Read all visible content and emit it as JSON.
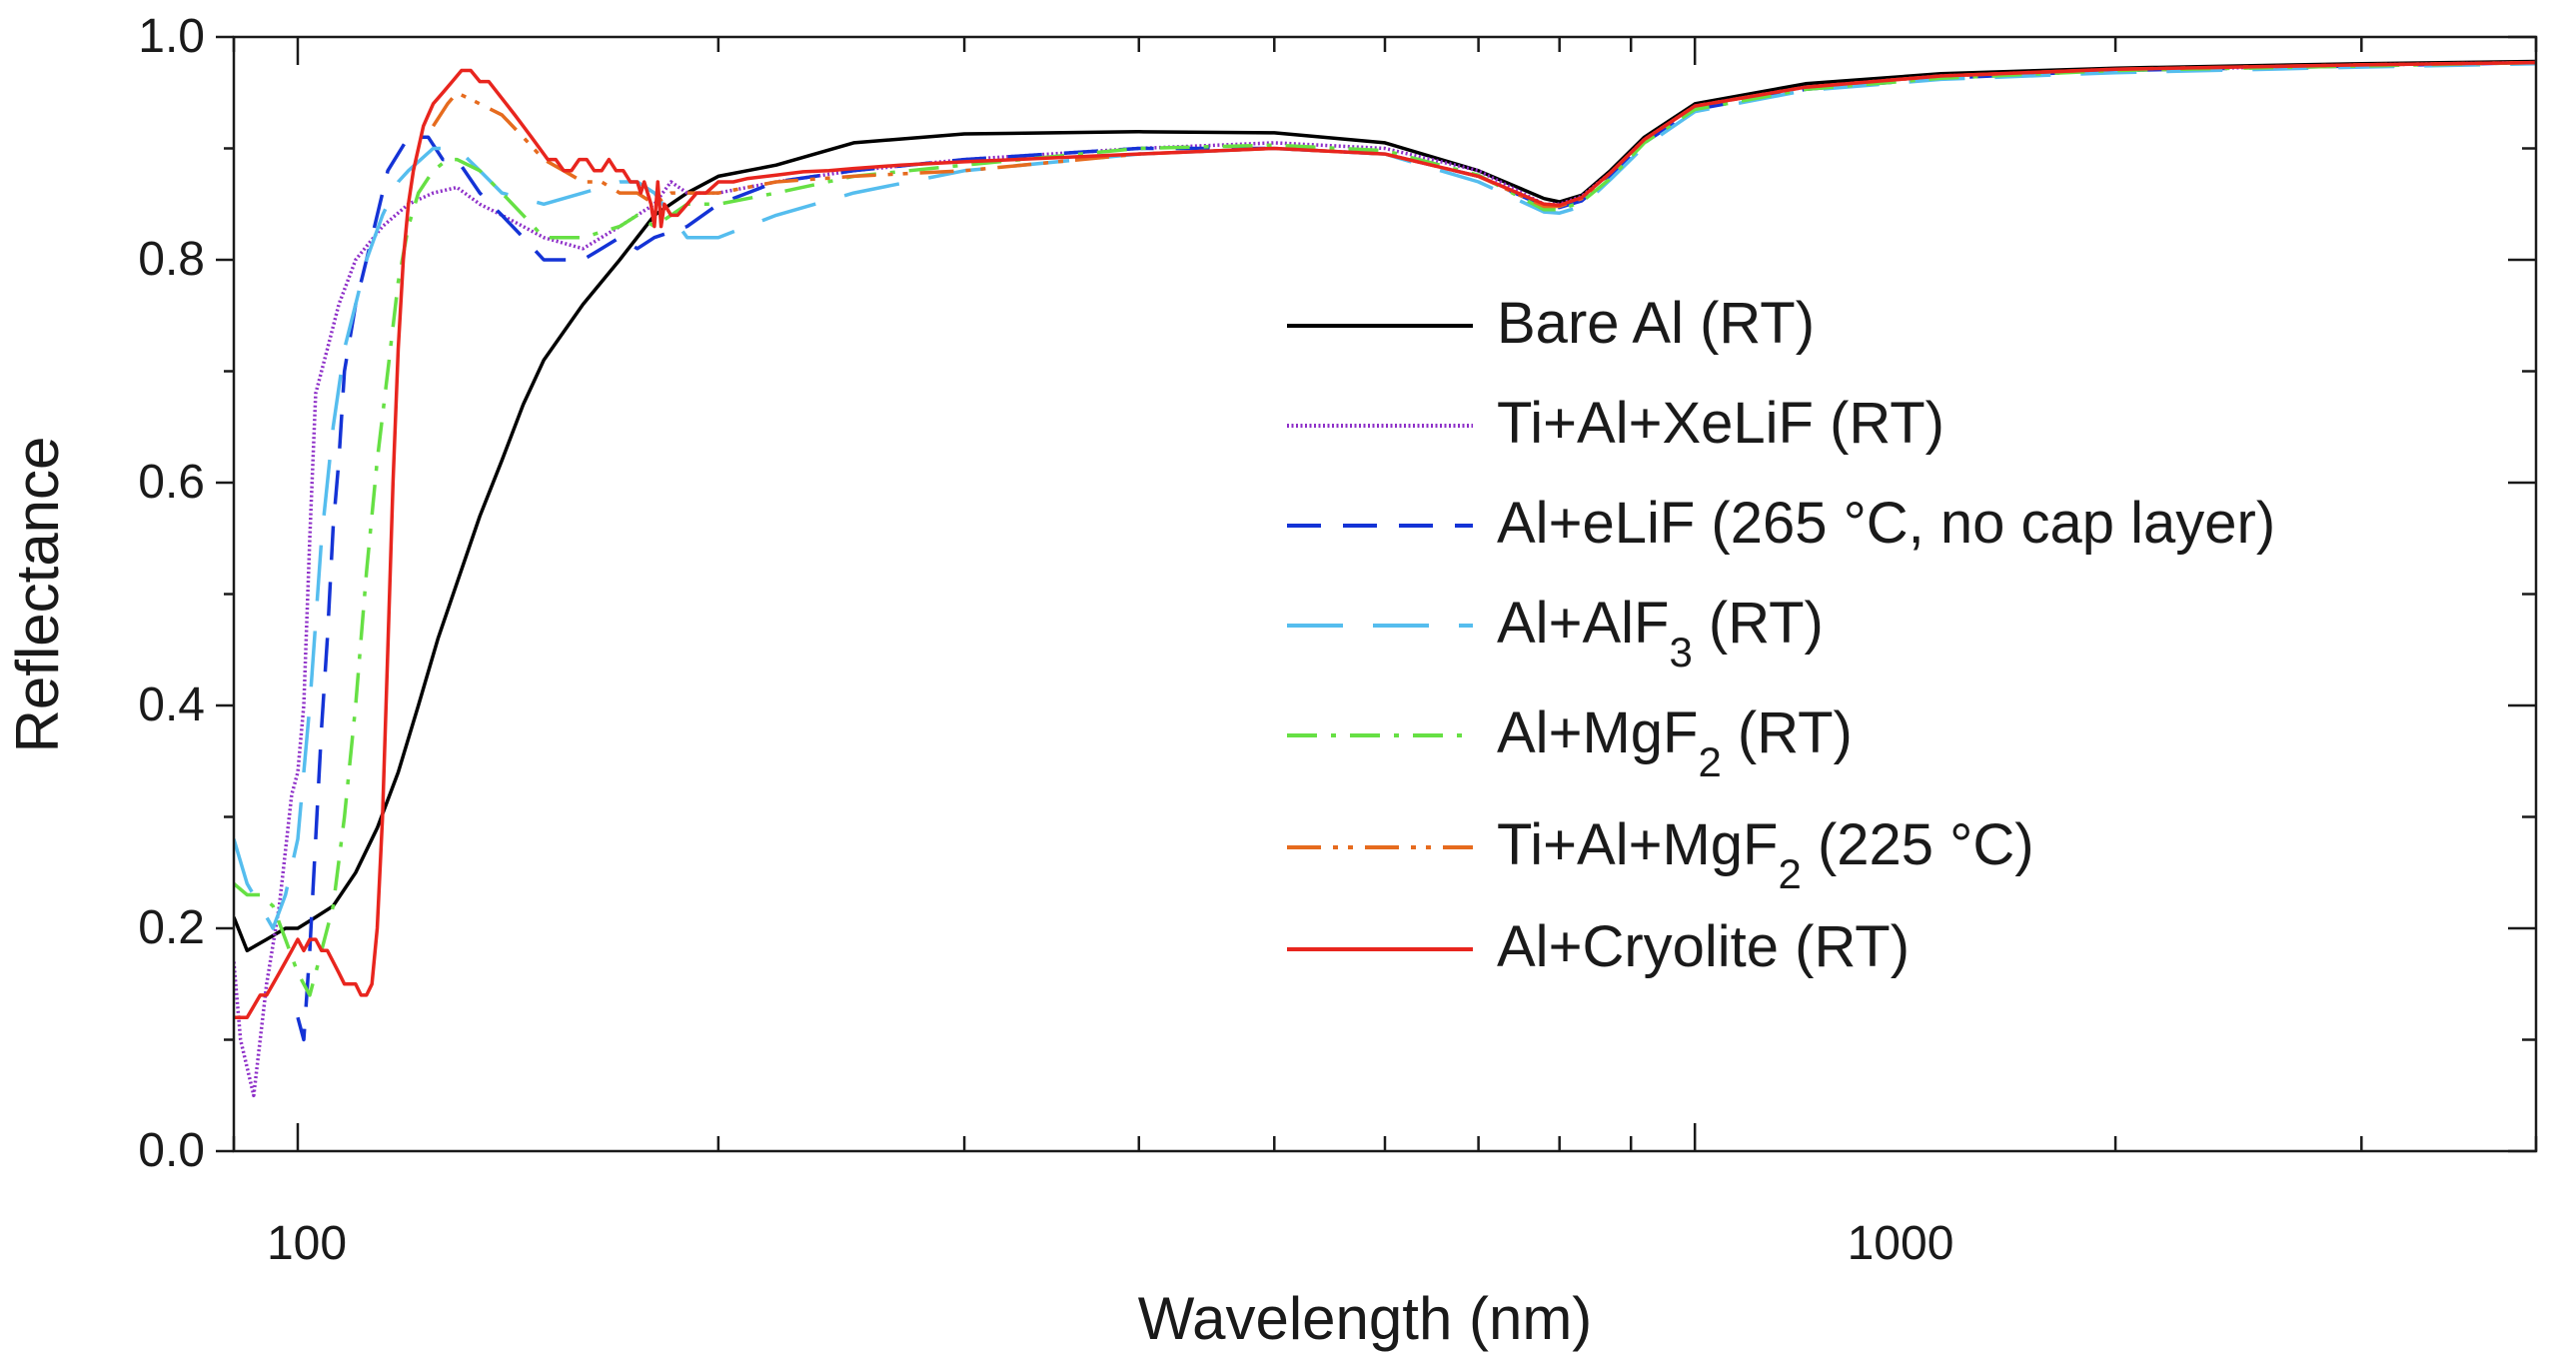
{
  "chart_data": {
    "type": "line",
    "xscale": "log",
    "xlabel": "Wavelength (nm)",
    "ylabel": "Reflectance",
    "xlim": [
      90,
      4000
    ],
    "ylim": [
      0,
      1.0
    ],
    "x_tick_labels": [
      {
        "value": 100,
        "label": "100"
      },
      {
        "value": 1000,
        "label": "1000"
      }
    ],
    "y_tick_labels": [
      {
        "value": 0.0,
        "label": "0.0"
      },
      {
        "value": 0.2,
        "label": "0.2"
      },
      {
        "value": 0.4,
        "label": "0.4"
      },
      {
        "value": 0.6,
        "label": "0.6"
      },
      {
        "value": 0.8,
        "label": "0.8"
      },
      {
        "value": 1.0,
        "label": "1.0"
      }
    ],
    "legend_position": "right",
    "series": [
      {
        "key": "bare-al",
        "name": "Bare Al (RT)",
        "color": "#000000",
        "dash": "solid",
        "x": [
          90,
          92,
          95,
          98,
          100,
          103,
          106,
          110,
          114,
          118,
          122,
          126,
          130,
          135,
          140,
          145,
          150,
          160,
          170,
          180,
          190,
          200,
          220,
          250,
          300,
          400,
          500,
          600,
          700,
          780,
          800,
          830,
          870,
          920,
          1000,
          1200,
          1500,
          2000,
          3000,
          4000
        ],
        "y": [
          0.21,
          0.18,
          0.19,
          0.2,
          0.2,
          0.21,
          0.22,
          0.25,
          0.29,
          0.34,
          0.4,
          0.46,
          0.51,
          0.57,
          0.62,
          0.67,
          0.71,
          0.76,
          0.8,
          0.84,
          0.86,
          0.875,
          0.885,
          0.905,
          0.913,
          0.915,
          0.914,
          0.905,
          0.88,
          0.855,
          0.852,
          0.858,
          0.88,
          0.91,
          0.94,
          0.958,
          0.967,
          0.972,
          0.976,
          0.978
        ]
      },
      {
        "key": "ti-al-xelif",
        "name": "Ti+Al+XeLiF (RT)",
        "color": "#8e2fc8",
        "dash": "dotted",
        "x": [
          90,
          91,
          93,
          95,
          97,
          99,
          100,
          101,
          102,
          103,
          105,
          107,
          110,
          115,
          120,
          125,
          130,
          135,
          140,
          145,
          150,
          160,
          170,
          180,
          185,
          190,
          200,
          220,
          250,
          300,
          400,
          500,
          600,
          700,
          780,
          800,
          830,
          870,
          920,
          1000,
          1200,
          1500,
          2000,
          3000,
          4000
        ],
        "y": [
          0.17,
          0.1,
          0.05,
          0.15,
          0.22,
          0.32,
          0.34,
          0.4,
          0.55,
          0.68,
          0.72,
          0.76,
          0.8,
          0.83,
          0.85,
          0.86,
          0.865,
          0.85,
          0.84,
          0.83,
          0.82,
          0.81,
          0.83,
          0.85,
          0.87,
          0.86,
          0.86,
          0.87,
          0.88,
          0.89,
          0.9,
          0.905,
          0.9,
          0.88,
          0.85,
          0.85,
          0.857,
          0.878,
          0.908,
          0.938,
          0.955,
          0.965,
          0.97,
          0.975,
          0.977
        ]
      },
      {
        "key": "al-elif",
        "name": "Al+eLiF (265 °C, no cap layer)",
        "color": "#1433d6",
        "dash": "longdash",
        "x": [
          100,
          101,
          102,
          103,
          104,
          105,
          106,
          107,
          108,
          110,
          113,
          116,
          120,
          124,
          127,
          130,
          135,
          140,
          145,
          150,
          155,
          160,
          165,
          170,
          175,
          180,
          190,
          200,
          220,
          250,
          300,
          400,
          500,
          600,
          700,
          780,
          800,
          830,
          870,
          920,
          1000,
          1200,
          1500,
          2000,
          3000,
          4000
        ],
        "y": [
          0.12,
          0.1,
          0.18,
          0.28,
          0.38,
          0.46,
          0.56,
          0.62,
          0.7,
          0.76,
          0.82,
          0.88,
          0.91,
          0.91,
          0.89,
          0.89,
          0.86,
          0.84,
          0.82,
          0.8,
          0.8,
          0.8,
          0.81,
          0.82,
          0.81,
          0.82,
          0.83,
          0.85,
          0.87,
          0.88,
          0.89,
          0.9,
          0.9,
          0.895,
          0.875,
          0.848,
          0.847,
          0.853,
          0.875,
          0.905,
          0.935,
          0.953,
          0.963,
          0.97,
          0.974,
          0.977
        ]
      },
      {
        "key": "al-alf3",
        "name": "Al+AlF3 (RT)",
        "color": "#55bdee",
        "dash": "longdash",
        "x": [
          90,
          92,
          94,
          96,
          98,
          100,
          102,
          104,
          106,
          108,
          110,
          112,
          115,
          118,
          120,
          125,
          130,
          135,
          140,
          150,
          160,
          170,
          175,
          180,
          185,
          190,
          200,
          220,
          250,
          300,
          400,
          500,
          600,
          700,
          780,
          800,
          830,
          870,
          920,
          1000,
          1200,
          1500,
          2000,
          3000,
          4000
        ],
        "y": [
          0.28,
          0.24,
          0.22,
          0.2,
          0.23,
          0.28,
          0.4,
          0.55,
          0.65,
          0.72,
          0.76,
          0.8,
          0.84,
          0.87,
          0.88,
          0.9,
          0.9,
          0.88,
          0.86,
          0.85,
          0.86,
          0.87,
          0.87,
          0.86,
          0.84,
          0.82,
          0.82,
          0.84,
          0.86,
          0.88,
          0.895,
          0.9,
          0.895,
          0.87,
          0.843,
          0.842,
          0.848,
          0.872,
          0.902,
          0.933,
          0.952,
          0.962,
          0.968,
          0.973,
          0.976
        ]
      },
      {
        "key": "al-mgf2",
        "name": "Al+MgF2 (RT)",
        "color": "#66e044",
        "dash": "dashdot",
        "x": [
          90,
          92,
          94,
          96,
          98,
          100,
          102,
          104,
          106,
          108,
          110,
          112,
          114,
          116,
          118,
          120,
          122,
          125,
          128,
          130,
          135,
          140,
          145,
          150,
          160,
          170,
          175,
          180,
          185,
          190,
          200,
          220,
          250,
          300,
          400,
          500,
          600,
          700,
          780,
          800,
          830,
          870,
          920,
          1000,
          1200,
          1500,
          2000,
          3000,
          4000
        ],
        "y": [
          0.24,
          0.23,
          0.23,
          0.22,
          0.19,
          0.16,
          0.14,
          0.18,
          0.22,
          0.3,
          0.4,
          0.52,
          0.62,
          0.7,
          0.78,
          0.83,
          0.86,
          0.88,
          0.89,
          0.89,
          0.88,
          0.86,
          0.84,
          0.82,
          0.82,
          0.83,
          0.84,
          0.83,
          0.84,
          0.85,
          0.85,
          0.86,
          0.875,
          0.885,
          0.9,
          0.903,
          0.898,
          0.876,
          0.845,
          0.845,
          0.852,
          0.873,
          0.905,
          0.935,
          0.953,
          0.963,
          0.97,
          0.974,
          0.977
        ]
      },
      {
        "key": "ti-al-mgf2",
        "name": "Ti+Al+MgF2 (225 °C)",
        "color": "#e66b1e",
        "dash": "dashdotdot",
        "x": [
          125,
          128,
          130,
          135,
          140,
          145,
          150,
          155,
          160,
          165,
          170,
          175,
          180,
          185,
          190,
          200,
          220,
          250,
          300,
          400,
          500,
          600,
          700,
          780,
          800,
          830,
          870,
          920,
          1000,
          1200,
          1500,
          2000,
          3000,
          4000
        ],
        "y": [
          0.92,
          0.94,
          0.95,
          0.94,
          0.93,
          0.91,
          0.89,
          0.88,
          0.87,
          0.87,
          0.86,
          0.86,
          0.85,
          0.86,
          0.86,
          0.86,
          0.87,
          0.875,
          0.88,
          0.895,
          0.9,
          0.895,
          0.875,
          0.848,
          0.848,
          0.855,
          0.878,
          0.908,
          0.938,
          0.955,
          0.965,
          0.971,
          0.975,
          0.977
        ]
      },
      {
        "key": "al-cryolite",
        "name": "Al+Cryolite (RT)",
        "color": "#e8251e",
        "dash": "solid",
        "x": [
          90,
          91,
          92,
          93,
          94,
          95,
          96,
          97,
          98,
          99,
          100,
          101,
          102,
          103,
          104,
          105,
          106,
          107,
          108,
          109,
          110,
          111,
          112,
          113,
          114,
          115,
          116,
          117,
          118,
          119,
          120,
          121,
          122,
          123,
          124,
          125,
          127,
          129,
          131,
          133,
          135,
          137,
          139,
          141,
          143,
          145,
          147,
          149,
          151,
          153,
          155,
          157,
          159,
          161,
          163,
          165,
          167,
          169,
          171,
          173,
          175,
          176,
          177,
          178,
          179,
          180,
          181,
          182,
          183,
          185,
          187,
          190,
          193,
          196,
          200,
          205,
          210,
          220,
          230,
          240,
          250,
          270,
          300,
          400,
          500,
          600,
          700,
          780,
          800,
          830,
          870,
          920,
          1000,
          1200,
          1500,
          2000,
          3000,
          4000
        ],
        "y": [
          0.12,
          0.12,
          0.12,
          0.13,
          0.14,
          0.14,
          0.15,
          0.16,
          0.17,
          0.18,
          0.19,
          0.18,
          0.19,
          0.19,
          0.18,
          0.18,
          0.17,
          0.16,
          0.15,
          0.15,
          0.15,
          0.14,
          0.14,
          0.15,
          0.2,
          0.3,
          0.45,
          0.6,
          0.72,
          0.8,
          0.85,
          0.88,
          0.9,
          0.92,
          0.93,
          0.94,
          0.95,
          0.96,
          0.97,
          0.97,
          0.96,
          0.96,
          0.95,
          0.94,
          0.93,
          0.92,
          0.91,
          0.9,
          0.89,
          0.89,
          0.88,
          0.88,
          0.89,
          0.89,
          0.88,
          0.88,
          0.89,
          0.88,
          0.88,
          0.87,
          0.87,
          0.86,
          0.87,
          0.86,
          0.85,
          0.83,
          0.87,
          0.83,
          0.85,
          0.84,
          0.84,
          0.85,
          0.86,
          0.86,
          0.87,
          0.87,
          0.873,
          0.876,
          0.879,
          0.88,
          0.882,
          0.885,
          0.888,
          0.895,
          0.9,
          0.895,
          0.875,
          0.85,
          0.849,
          0.856,
          0.878,
          0.908,
          0.938,
          0.955,
          0.965,
          0.971,
          0.975,
          0.977
        ]
      }
    ]
  }
}
